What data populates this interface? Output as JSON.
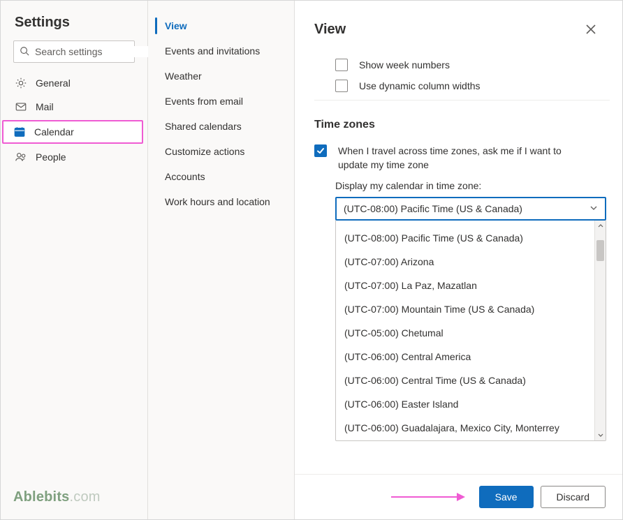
{
  "colors": {
    "accent": "#0f6cbd",
    "highlight_annotation": "#ef5bd3",
    "border": "#e1dfdd",
    "panel_bg": "#faf9f8",
    "text": "#323130",
    "muted": "#605e5c"
  },
  "header": {
    "title": "Settings"
  },
  "search": {
    "placeholder": "Search settings"
  },
  "nav": {
    "items": [
      {
        "id": "general",
        "label": "General",
        "icon": "gear"
      },
      {
        "id": "mail",
        "label": "Mail",
        "icon": "mail"
      },
      {
        "id": "calendar",
        "label": "Calendar",
        "icon": "calendar",
        "selected": true,
        "highlight": true
      },
      {
        "id": "people",
        "label": "People",
        "icon": "people"
      }
    ]
  },
  "brand": {
    "name": "Ablebits",
    "suffix": ".com"
  },
  "subnav": {
    "items": [
      {
        "label": "View",
        "selected": true
      },
      {
        "label": "Events and invitations"
      },
      {
        "label": "Weather"
      },
      {
        "label": "Events from email"
      },
      {
        "label": "Shared calendars"
      },
      {
        "label": "Customize actions"
      },
      {
        "label": "Accounts"
      },
      {
        "label": "Work hours and location"
      }
    ]
  },
  "panel": {
    "title": "View",
    "checkboxes": [
      {
        "id": "week_numbers",
        "label": "Show week numbers",
        "checked": false
      },
      {
        "id": "dyn_cols",
        "label": "Use dynamic column widths",
        "checked": false
      }
    ],
    "section_title": "Time zones",
    "travel_checkbox": {
      "label": "When I travel across time zones, ask me if I want to update my time zone",
      "checked": true
    },
    "tz_field_label": "Display my calendar in time zone:",
    "tz_selected": "(UTC-08:00) Pacific Time (US & Canada)",
    "tz_options": [
      "(UTC-08:00) Pacific Time (US & Canada)",
      "(UTC-07:00) Arizona",
      "(UTC-07:00) La Paz, Mazatlan",
      "(UTC-07:00) Mountain Time (US & Canada)",
      "(UTC-05:00) Chetumal",
      "(UTC-06:00) Central America",
      "(UTC-06:00) Central Time (US & Canada)",
      "(UTC-06:00) Easter Island",
      "(UTC-06:00) Guadalajara, Mexico City, Monterrey"
    ]
  },
  "footer": {
    "save": "Save",
    "discard": "Discard"
  }
}
